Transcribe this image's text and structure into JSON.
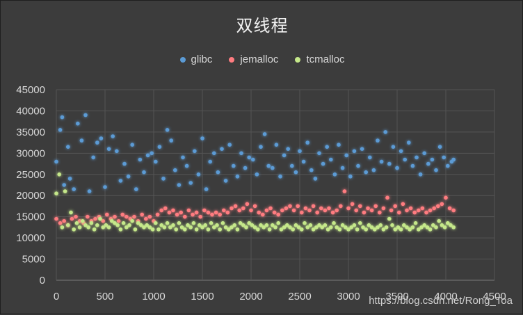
{
  "chart_data": {
    "type": "scatter",
    "title": "双线程",
    "xlabel": "",
    "ylabel": "",
    "xlim": [
      0,
      4500
    ],
    "ylim": [
      0,
      45000
    ],
    "xticks": [
      0,
      500,
      1000,
      1500,
      2000,
      2500,
      3000,
      3500,
      4000,
      4500
    ],
    "yticks": [
      0,
      5000,
      10000,
      15000,
      20000,
      25000,
      30000,
      35000,
      40000,
      45000
    ],
    "grid": true,
    "legend_position": "top",
    "series": [
      {
        "name": "glibc",
        "color": "#5b9bd5",
        "x": [
          0,
          40,
          60,
          80,
          120,
          140,
          180,
          220,
          260,
          300,
          340,
          380,
          420,
          460,
          500,
          540,
          580,
          620,
          660,
          700,
          740,
          780,
          820,
          860,
          900,
          940,
          980,
          1020,
          1060,
          1100,
          1140,
          1180,
          1220,
          1260,
          1300,
          1340,
          1380,
          1420,
          1460,
          1500,
          1540,
          1580,
          1620,
          1660,
          1700,
          1740,
          1780,
          1820,
          1860,
          1900,
          1940,
          1980,
          2020,
          2060,
          2100,
          2140,
          2180,
          2220,
          2260,
          2300,
          2340,
          2380,
          2420,
          2460,
          2500,
          2540,
          2580,
          2620,
          2660,
          2700,
          2740,
          2780,
          2820,
          2860,
          2900,
          2940,
          2980,
          3020,
          3060,
          3100,
          3140,
          3180,
          3220,
          3260,
          3300,
          3340,
          3380,
          3420,
          3460,
          3500,
          3540,
          3580,
          3620,
          3660,
          3700,
          3740,
          3780,
          3820,
          3860,
          3900,
          3940,
          3980,
          4020,
          4060,
          4080
        ],
        "y": [
          28000,
          35500,
          38500,
          22500,
          31500,
          24000,
          21500,
          37000,
          33000,
          39000,
          21000,
          29000,
          32500,
          33500,
          22000,
          31000,
          34000,
          30500,
          23500,
          27500,
          24500,
          32000,
          21500,
          28500,
          25500,
          29500,
          30000,
          28000,
          31500,
          24000,
          35500,
          33000,
          26000,
          22500,
          29000,
          27000,
          23000,
          30500,
          25000,
          33500,
          21500,
          28000,
          30000,
          25500,
          31000,
          23500,
          32000,
          27000,
          24500,
          30000,
          26500,
          29000,
          28500,
          25000,
          31500,
          34500,
          27000,
          26500,
          32000,
          24500,
          29500,
          31000,
          27000,
          25500,
          30500,
          28000,
          32500,
          26000,
          24000,
          30000,
          27500,
          31500,
          28500,
          25000,
          32000,
          26500,
          29500,
          24500,
          30500,
          27000,
          31000,
          25500,
          29000,
          26000,
          33000,
          28000,
          35000,
          27500,
          31500,
          26500,
          30500,
          28500,
          32500,
          27000,
          29000,
          25000,
          30000,
          27500,
          28500,
          26000,
          31500,
          29000,
          27000,
          28000,
          28500
        ]
      },
      {
        "name": "jemalloc",
        "color": "#ff7c80",
        "x": [
          0,
          40,
          80,
          120,
          160,
          200,
          240,
          280,
          320,
          360,
          400,
          440,
          480,
          520,
          560,
          600,
          640,
          680,
          720,
          760,
          800,
          840,
          880,
          920,
          960,
          1000,
          1040,
          1080,
          1120,
          1160,
          1200,
          1240,
          1280,
          1320,
          1360,
          1400,
          1440,
          1480,
          1520,
          1560,
          1600,
          1640,
          1680,
          1720,
          1760,
          1800,
          1840,
          1880,
          1920,
          1960,
          2000,
          2040,
          2080,
          2120,
          2160,
          2200,
          2240,
          2280,
          2320,
          2360,
          2400,
          2440,
          2480,
          2520,
          2560,
          2600,
          2640,
          2680,
          2720,
          2760,
          2800,
          2840,
          2880,
          2920,
          2960,
          3000,
          3040,
          3080,
          3120,
          3160,
          3200,
          3240,
          3280,
          3320,
          3360,
          3400,
          3440,
          3480,
          3520,
          3560,
          3600,
          3640,
          3680,
          3720,
          3760,
          3800,
          3840,
          3880,
          3920,
          3960,
          4000,
          4040,
          4080
        ],
        "y": [
          14500,
          13500,
          14000,
          13000,
          14500,
          15000,
          14000,
          13500,
          15000,
          14000,
          14500,
          15000,
          14000,
          15500,
          14500,
          15000,
          14000,
          15500,
          15000,
          14500,
          15000,
          14000,
          15500,
          14500,
          15000,
          14000,
          15500,
          16500,
          17000,
          16000,
          16500,
          15500,
          16000,
          15000,
          16500,
          15500,
          16000,
          15000,
          16500,
          16000,
          15500,
          16000,
          15500,
          16500,
          16000,
          17000,
          17500,
          16500,
          17000,
          18000,
          16500,
          17500,
          16000,
          15500,
          16500,
          17000,
          16000,
          15500,
          16500,
          17000,
          17500,
          16500,
          17500,
          16000,
          17000,
          16500,
          17500,
          16000,
          17000,
          16500,
          17000,
          16000,
          16500,
          17500,
          21000,
          17000,
          18000,
          16500,
          17500,
          16000,
          17000,
          16500,
          17500,
          16000,
          17000,
          19500,
          16500,
          17500,
          16000,
          18000,
          16500,
          17000,
          16000,
          16500,
          17000,
          16000,
          16500,
          17000,
          17500,
          18000,
          19500,
          17000,
          16500
        ]
      },
      {
        "name": "tcmalloc",
        "color": "#c5e88a",
        "x": [
          0,
          30,
          60,
          90,
          120,
          150,
          180,
          210,
          240,
          270,
          300,
          330,
          360,
          390,
          420,
          450,
          480,
          510,
          540,
          570,
          600,
          630,
          660,
          690,
          720,
          750,
          780,
          810,
          840,
          870,
          900,
          930,
          960,
          990,
          1020,
          1050,
          1080,
          1110,
          1140,
          1170,
          1200,
          1230,
          1260,
          1290,
          1320,
          1350,
          1380,
          1410,
          1440,
          1470,
          1500,
          1530,
          1560,
          1590,
          1620,
          1650,
          1680,
          1710,
          1740,
          1770,
          1800,
          1830,
          1860,
          1890,
          1920,
          1950,
          1980,
          2010,
          2040,
          2070,
          2100,
          2130,
          2160,
          2190,
          2220,
          2250,
          2280,
          2310,
          2340,
          2370,
          2400,
          2430,
          2460,
          2490,
          2520,
          2550,
          2580,
          2610,
          2640,
          2670,
          2700,
          2730,
          2760,
          2790,
          2820,
          2850,
          2880,
          2910,
          2940,
          2970,
          3000,
          3030,
          3060,
          3090,
          3120,
          3150,
          3180,
          3210,
          3240,
          3270,
          3300,
          3330,
          3360,
          3390,
          3420,
          3450,
          3480,
          3510,
          3540,
          3570,
          3600,
          3630,
          3660,
          3690,
          3720,
          3750,
          3780,
          3810,
          3840,
          3870,
          3900,
          3930,
          3960,
          3990,
          4020,
          4050,
          4080
        ],
        "y": [
          20500,
          25000,
          12500,
          21000,
          13000,
          16000,
          12000,
          13500,
          12500,
          14000,
          13000,
          12500,
          13500,
          12000,
          13000,
          14500,
          12500,
          13000,
          12500,
          14000,
          13500,
          13000,
          12000,
          13500,
          12500,
          13000,
          14000,
          12000,
          13500,
          13000,
          12500,
          13000,
          12500,
          12000,
          13500,
          12000,
          13000,
          12500,
          13500,
          12500,
          13000,
          12000,
          13500,
          12500,
          12000,
          13000,
          12500,
          13500,
          12000,
          13000,
          12500,
          13000,
          12000,
          13500,
          12500,
          13000,
          12000,
          13500,
          12500,
          12000,
          12500,
          13000,
          12000,
          13500,
          13000,
          12500,
          13500,
          13000,
          12500,
          12000,
          13000,
          12500,
          13000,
          12000,
          13000,
          12500,
          13500,
          12000,
          12500,
          13000,
          12500,
          12000,
          13000,
          12500,
          12000,
          13500,
          12500,
          13000,
          12000,
          12500,
          13000,
          12500,
          13000,
          12000,
          12500,
          13500,
          12500,
          12000,
          13000,
          12500,
          12000,
          12500,
          13000,
          12000,
          13500,
          12500,
          12000,
          13000,
          12500,
          12000,
          12500,
          13000,
          12000,
          12500,
          14500,
          13000,
          12000,
          12500,
          12000,
          13000,
          12500,
          12000,
          12500,
          13500,
          12000,
          12500,
          13000,
          12500,
          12000,
          13000,
          12500,
          14000,
          13000,
          12500,
          13500,
          13000,
          12500
        ]
      }
    ]
  },
  "watermark": "https://blog.csdn.net/Rong_Toa"
}
